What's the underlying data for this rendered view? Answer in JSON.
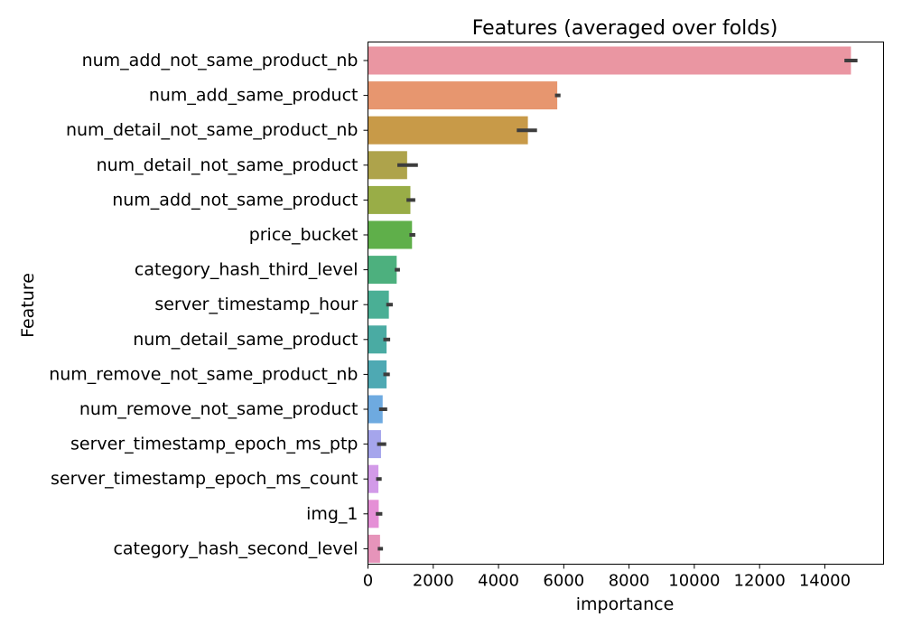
{
  "chart_data": {
    "type": "bar",
    "orientation": "horizontal",
    "title": "Features (averaged over folds)",
    "xlabel": "importance",
    "ylabel": "Feature",
    "xlim": [
      0,
      15800
    ],
    "xticks": [
      0,
      2000,
      4000,
      6000,
      8000,
      10000,
      12000,
      14000
    ],
    "grid": false,
    "legend": "none",
    "categories": [
      "num_add_not_same_product_nb",
      "num_add_same_product",
      "num_detail_not_same_product_nb",
      "num_detail_not_same_product",
      "num_add_not_same_product",
      "price_bucket",
      "category_hash_third_level",
      "server_timestamp_hour",
      "num_detail_same_product",
      "num_remove_not_same_product_nb",
      "num_remove_not_same_product",
      "server_timestamp_epoch_ms_ptp",
      "server_timestamp_epoch_ms_count",
      "img_1",
      "category_hash_second_level"
    ],
    "values": [
      14800,
      5800,
      4900,
      1200,
      1300,
      1350,
      880,
      640,
      570,
      570,
      450,
      400,
      320,
      330,
      370
    ],
    "error_low": [
      14600,
      5730,
      4560,
      900,
      1180,
      1270,
      820,
      560,
      470,
      470,
      340,
      280,
      250,
      240,
      300
    ],
    "error_high": [
      15000,
      5900,
      5180,
      1530,
      1450,
      1450,
      980,
      760,
      680,
      670,
      590,
      560,
      420,
      440,
      460
    ],
    "colors": [
      "#ea96a2",
      "#e7966f",
      "#c89a48",
      "#aea34b",
      "#99ad47",
      "#5faf4a",
      "#4db07e",
      "#4aaf95",
      "#4aaba3",
      "#4ea9b3",
      "#6eaae0",
      "#a5a5ec",
      "#d29ae8",
      "#e58fd6",
      "#e694ba"
    ]
  }
}
